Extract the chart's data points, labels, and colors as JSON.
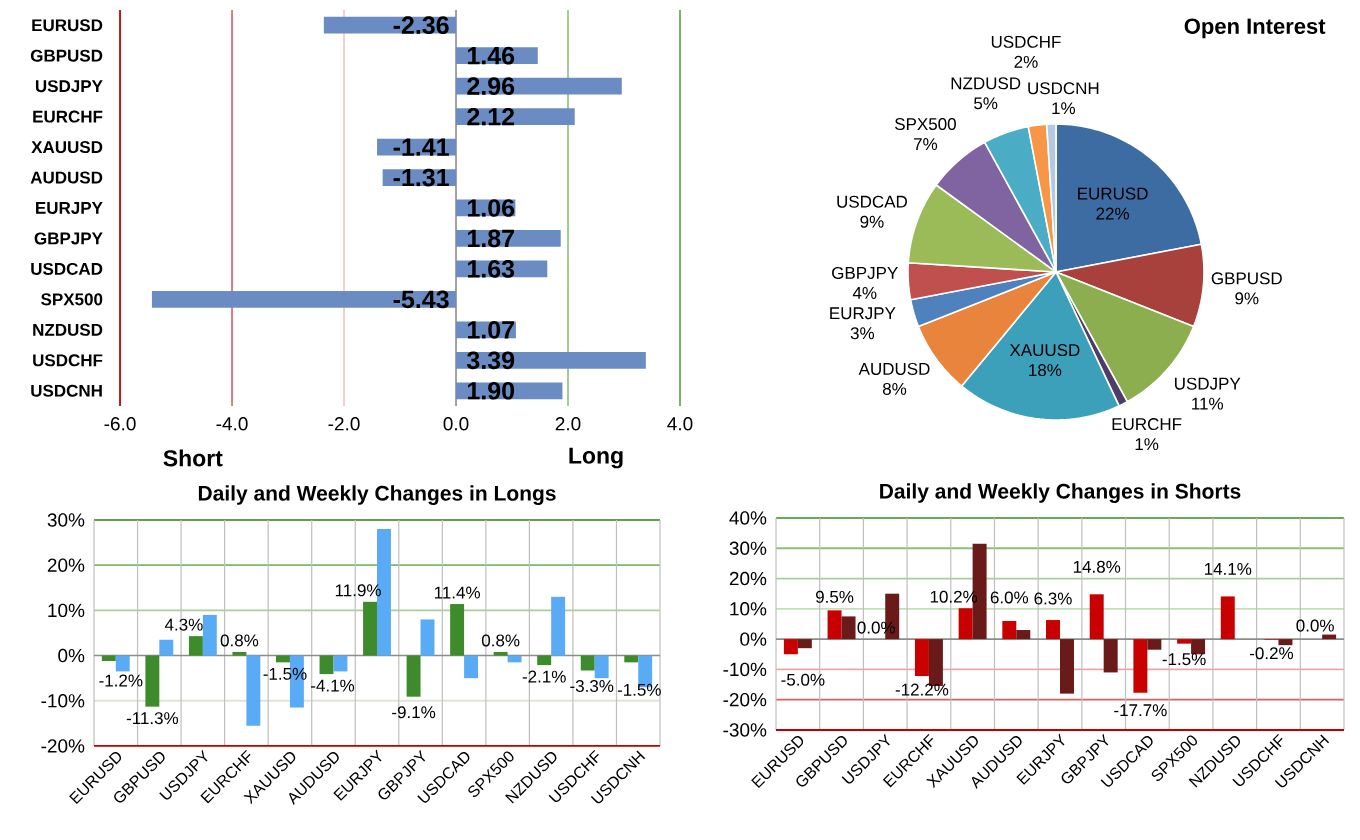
{
  "chart_data": [
    {
      "type": "bar",
      "orientation": "horizontal",
      "categories": [
        "EURUSD",
        "GBPUSD",
        "USDJPY",
        "EURCHF",
        "XAUUSD",
        "AUDUSD",
        "EURJPY",
        "GBPJPY",
        "USDCAD",
        "SPX500",
        "NZDUSD",
        "USDCHF",
        "USDCNH"
      ],
      "values": [
        -2.36,
        1.46,
        2.96,
        2.12,
        -1.41,
        -1.31,
        1.06,
        1.87,
        1.63,
        -5.43,
        1.07,
        3.39,
        1.9
      ],
      "value_labels": [
        "-2.36",
        "1.46",
        "2.96",
        "2.12",
        "-1.41",
        "-1.31",
        "1.06",
        "1.87",
        "1.63",
        "-5.43",
        "1.07",
        "3.39",
        "1.90"
      ],
      "color": "#6A8CC2",
      "xlim": [
        -6,
        4
      ],
      "xticks": [
        {
          "value": -6,
          "label": "-6.0"
        },
        {
          "value": -4,
          "label": "-4.0"
        },
        {
          "value": -2,
          "label": "-2.0"
        },
        {
          "value": 0,
          "label": "0.0"
        },
        {
          "value": 2,
          "label": "2.0"
        },
        {
          "value": 4,
          "label": "4.0"
        }
      ],
      "ref_lines": [
        {
          "axis": "x",
          "value": -4,
          "color": "#D87070"
        },
        {
          "axis": "x",
          "value": -2,
          "color": "#F2CACA"
        },
        {
          "axis": "x",
          "value": 2,
          "color": "#98C888"
        },
        {
          "axis": "x",
          "value": 4,
          "color": "#6AAA55"
        }
      ],
      "annotations": [
        "Short",
        "Long"
      ]
    },
    {
      "type": "pie",
      "title": "Open Interest",
      "categories": [
        "EURUSD",
        "GBPUSD",
        "USDJPY",
        "EURCHF",
        "XAUUSD",
        "AUDUSD",
        "EURJPY",
        "GBPJPY",
        "USDCAD",
        "SPX500",
        "NZDUSD",
        "USDCHF",
        "USDCNH"
      ],
      "values": [
        22,
        9,
        11,
        1,
        18,
        8,
        3,
        4,
        9,
        7,
        5,
        2,
        1
      ],
      "value_labels": [
        "22%",
        "9%",
        "11%",
        "1%",
        "18%",
        "8%",
        "3%",
        "4%",
        "9%",
        "7%",
        "5%",
        "2%",
        "1%"
      ],
      "colors": [
        "#3D6CA3",
        "#A8403C",
        "#8CAE4F",
        "#4E3D66",
        "#3DA0BB",
        "#E8843C",
        "#4F81BD",
        "#C0504D",
        "#9BBB59",
        "#8064A2",
        "#4BACC6",
        "#F79646",
        "#B3C8E3"
      ]
    },
    {
      "type": "bar",
      "title": "Daily and Weekly Changes in Longs",
      "categories": [
        "EURUSD",
        "GBPUSD",
        "USDJPY",
        "EURCHF",
        "XAUUSD",
        "AUDUSD",
        "EURJPY",
        "GBPJPY",
        "USDCAD",
        "SPX500",
        "NZDUSD",
        "USDCHF",
        "USDCNH"
      ],
      "series": [
        {
          "color": "#3D8B2A",
          "values": [
            -1.2,
            -11.3,
            4.3,
            0.8,
            -1.5,
            -4.1,
            11.9,
            -9.1,
            11.4,
            0.8,
            -2.1,
            -3.3,
            -1.5
          ],
          "value_labels": [
            "-1.2%",
            "-11.3%",
            "4.3%",
            "0.8%",
            "-1.5%",
            "-4.1%",
            "11.9%",
            "-9.1%",
            "11.4%",
            "0.8%",
            "-2.1%",
            "-3.3%",
            "-1.5%"
          ]
        },
        {
          "color": "#5AABF5",
          "values": [
            -3.5,
            3.5,
            9,
            -15.5,
            -11.5,
            -3.5,
            28,
            8,
            -5,
            -1.5,
            13,
            -5,
            -7
          ]
        }
      ],
      "ylim": [
        -20,
        30
      ],
      "yticks": [
        {
          "value": -20,
          "label": "-20%"
        },
        {
          "value": -10,
          "label": "-10%"
        },
        {
          "value": 0,
          "label": "0%"
        },
        {
          "value": 10,
          "label": "10%"
        },
        {
          "value": 20,
          "label": "20%"
        },
        {
          "value": 30,
          "label": "30%"
        }
      ],
      "ref_lines": [
        {
          "axis": "y",
          "value": 30,
          "color": "#5FA048"
        },
        {
          "axis": "y",
          "value": 20,
          "color": "#7FB86A"
        },
        {
          "axis": "y",
          "value": 10,
          "color": "#A8D098"
        },
        {
          "axis": "y",
          "value": -10,
          "color": "#DDE5D8"
        }
      ],
      "grid": "x"
    },
    {
      "type": "bar",
      "title": "Daily and Weekly Changes in Shorts",
      "categories": [
        "EURUSD",
        "GBPUSD",
        "USDJPY",
        "EURCHF",
        "XAUUSD",
        "AUDUSD",
        "EURJPY",
        "GBPJPY",
        "USDCAD",
        "SPX500",
        "NZDUSD",
        "USDCHF",
        "USDCNH"
      ],
      "series": [
        {
          "color": "#C80000",
          "values": [
            -5.0,
            9.5,
            0.0,
            -12.2,
            10.2,
            6.0,
            6.3,
            14.8,
            -17.7,
            -1.5,
            14.1,
            -0.2,
            0.0
          ],
          "value_labels": [
            "-5.0%",
            "9.5%",
            "0.0%",
            "-12.2%",
            "10.2%",
            "6.0%",
            "6.3%",
            "14.8%",
            "-17.7%",
            "-1.5%",
            "14.1%",
            "-0.2%",
            "0.0%"
          ]
        },
        {
          "color": "#6B1A1A",
          "values": [
            -3,
            7.5,
            15,
            -15.5,
            31.5,
            3,
            -18,
            -11,
            -3.5,
            -5,
            0,
            -2,
            1.5
          ]
        }
      ],
      "ylim": [
        -30,
        40
      ],
      "yticks": [
        {
          "value": -30,
          "label": "-30%"
        },
        {
          "value": -20,
          "label": "-20%"
        },
        {
          "value": -10,
          "label": "-10%"
        },
        {
          "value": 0,
          "label": "0%"
        },
        {
          "value": 10,
          "label": "10%"
        },
        {
          "value": 20,
          "label": "20%"
        },
        {
          "value": 30,
          "label": "30%"
        },
        {
          "value": 40,
          "label": "40%"
        }
      ],
      "ref_lines": [
        {
          "axis": "y",
          "value": 40,
          "color": "#6AAA55"
        },
        {
          "axis": "y",
          "value": 30,
          "color": "#8CC07A"
        },
        {
          "axis": "y",
          "value": 20,
          "color": "#A8D098"
        },
        {
          "axis": "y",
          "value": 10,
          "color": "#C4E0B8"
        },
        {
          "axis": "y",
          "value": -10,
          "color": "#E8A8A8"
        },
        {
          "axis": "y",
          "value": -20,
          "color": "#D86060"
        }
      ],
      "grid": "x"
    }
  ]
}
